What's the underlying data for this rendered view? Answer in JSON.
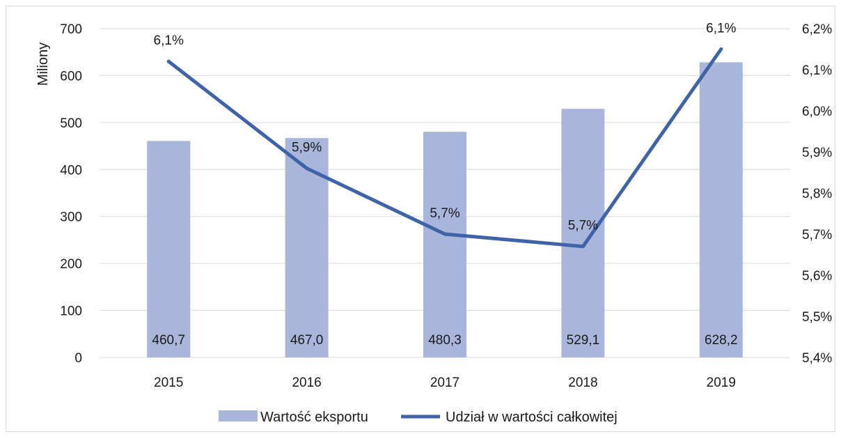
{
  "chart_data": {
    "type": "bar",
    "categories": [
      "2015",
      "2016",
      "2017",
      "2018",
      "2019"
    ],
    "series": [
      {
        "name": "Wartość eksportu",
        "type": "bar",
        "axis": "left",
        "values": [
          460.7,
          467.0,
          480.3,
          529.1,
          628.2
        ],
        "labels": [
          "460,7",
          "467,0",
          "480,3",
          "529,1",
          "628,2"
        ],
        "color": "#a9b6dc"
      },
      {
        "name": "Udział w wartości całkowitej",
        "type": "line",
        "axis": "right",
        "values": [
          6.12,
          5.86,
          5.7,
          5.67,
          6.15
        ],
        "labels": [
          "6,1%",
          "5,9%",
          "5,7%",
          "5,7%",
          "6,1%"
        ],
        "color": "#3f63a6"
      }
    ],
    "ylabel": "Miliony",
    "ylim": [
      0,
      700
    ],
    "y_ticks": [
      "0",
      "100",
      "200",
      "300",
      "400",
      "500",
      "600",
      "700"
    ],
    "y2lim": [
      5.4,
      6.2
    ],
    "y2_ticks": [
      "5,4%",
      "5,5%",
      "5,6%",
      "5,7%",
      "5,8%",
      "5,9%",
      "6,0%",
      "6,1%",
      "6,2%"
    ],
    "grid": true,
    "legend_position": "bottom"
  }
}
